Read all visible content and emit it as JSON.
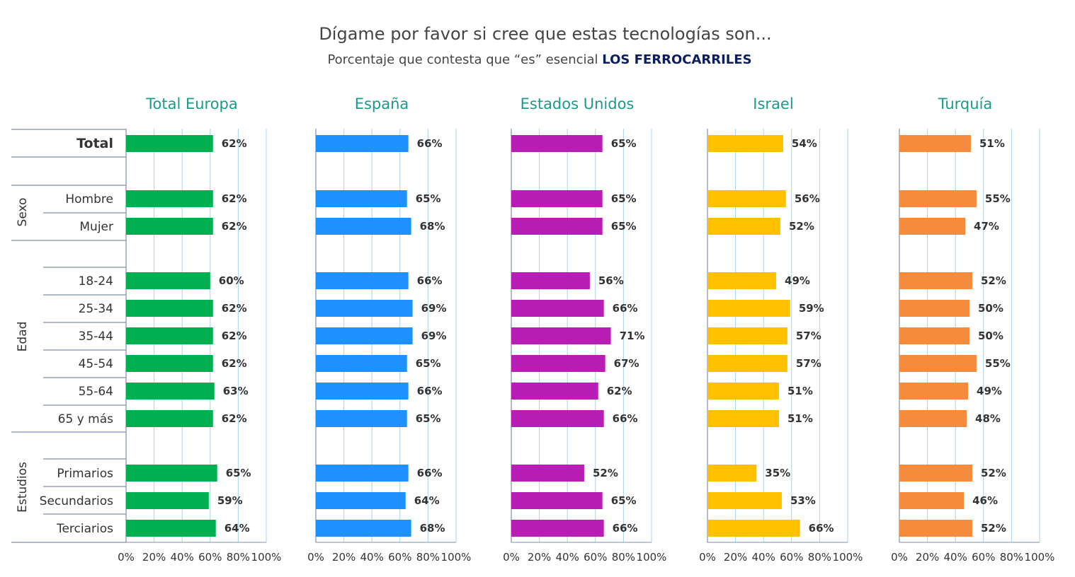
{
  "title": "Dígame por favor si cree que estas tecnologías son...",
  "subtitle_prefix": "Porcentaje que contesta que “es” esencial ",
  "subtitle_highlight": "LOS FERROCARRILES",
  "colors": {
    "title": "#444444",
    "highlight": "#0c1f5c",
    "panel_title": "#1a9a8a",
    "grid": "#a9d3ee",
    "axis": "#7f8fa8",
    "text": "#333333"
  },
  "chart_data": {
    "type": "bar",
    "orientation": "horizontal",
    "xlim": [
      0,
      100
    ],
    "x_ticks": [
      "0%",
      "20%",
      "40%",
      "60%",
      "80%",
      "100%"
    ],
    "groups": [
      {
        "label": "",
        "rows": [
          "Total"
        ]
      },
      {
        "label": "Sexo",
        "rows": [
          "Hombre",
          "Mujer"
        ]
      },
      {
        "label": "Edad",
        "rows": [
          "18-24",
          "25-34",
          "35-44",
          "45-54",
          "55-64",
          "65 y más"
        ]
      },
      {
        "label": "Estudios",
        "rows": [
          "Primarios",
          "Secundarios",
          "Terciarios"
        ]
      }
    ],
    "categories": [
      "Total",
      "Hombre",
      "Mujer",
      "18-24",
      "25-34",
      "35-44",
      "45-54",
      "55-64",
      "65 y más",
      "Primarios",
      "Secundarios",
      "Terciarios"
    ],
    "series": [
      {
        "name": "Total Europa",
        "color": "#00b050",
        "values": [
          62,
          62,
          62,
          60,
          62,
          62,
          62,
          63,
          62,
          65,
          59,
          64
        ],
        "labels": [
          "62%",
          "62%",
          "62%",
          "60%",
          "62%",
          "62%",
          "62%",
          "63%",
          "62%",
          "65%",
          "59%",
          "64%"
        ]
      },
      {
        "name": "España",
        "color": "#1e90ff",
        "values": [
          66,
          65,
          68,
          66,
          69,
          69,
          65,
          66,
          65,
          66,
          64,
          68
        ],
        "labels": [
          "66%",
          "65%",
          "68%",
          "66%",
          "69%",
          "69%",
          "65%",
          "66%",
          "65%",
          "66%",
          "64%",
          "68%"
        ]
      },
      {
        "name": "Estados Unidos",
        "color": "#b81eb4",
        "values": [
          65,
          65,
          65,
          56,
          66,
          71,
          67,
          62,
          66,
          52,
          65,
          66
        ],
        "labels": [
          "65%",
          "65%",
          "65%",
          "56%",
          "66%",
          "71%",
          "67%",
          "62%",
          "66%",
          "52%",
          "65%",
          "66%"
        ]
      },
      {
        "name": "Israel",
        "color": "#ffc000",
        "values": [
          54,
          56,
          52,
          49,
          59,
          57,
          57,
          51,
          51,
          35,
          53,
          66
        ],
        "labels": [
          "54%",
          "56%",
          "52%",
          "49%",
          "59%",
          "57%",
          "57%",
          "51%",
          "51%",
          "35%",
          "53%",
          "66%"
        ]
      },
      {
        "name": "Turquía",
        "color": "#f58b3c",
        "values": [
          51,
          55,
          47,
          52,
          50,
          50,
          55,
          49,
          48,
          52,
          46,
          52
        ],
        "labels": [
          "51%",
          "55%",
          "47%",
          "52%",
          "50%",
          "50%",
          "55%",
          "49%",
          "48%",
          "52%",
          "46%",
          "52%"
        ]
      }
    ]
  }
}
